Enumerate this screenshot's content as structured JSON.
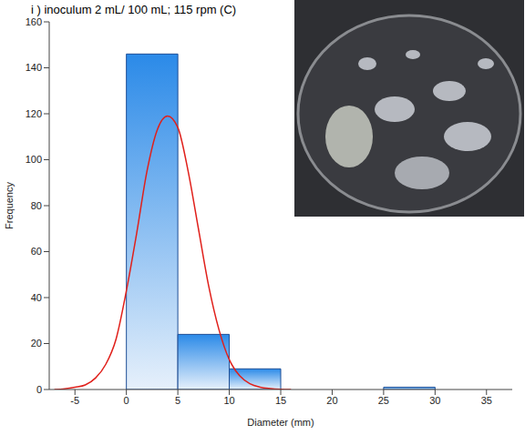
{
  "chart_data": {
    "type": "histogram",
    "title": "i ) inoculum 2 mL/ 100 mL; 115 rpm (C)",
    "x_label": "Diameter (mm)",
    "y_label": "Frequency",
    "bins": [
      0,
      5,
      10,
      15,
      20,
      25,
      30
    ],
    "values": [
      146,
      24,
      9,
      0,
      0,
      1
    ],
    "color": "#2b8ae8",
    "xlim": [
      -7.5,
      37.5
    ],
    "xticks": [
      -5,
      0,
      5,
      10,
      15,
      20,
      25,
      30,
      35
    ],
    "ylim": [
      0,
      160
    ],
    "yticks": [
      0,
      20,
      40,
      60,
      80,
      100,
      120,
      140,
      160
    ],
    "grid": false,
    "curve": {
      "type": "line",
      "color": "#e0201b",
      "x": [
        -7,
        -6,
        -5,
        -4,
        -3,
        -2,
        -1,
        0,
        1,
        2,
        3,
        4,
        5,
        6,
        7,
        8,
        9,
        10,
        11,
        12,
        13,
        14,
        15,
        16
      ],
      "values": [
        0,
        0.3,
        1,
        2,
        5,
        11,
        22,
        43,
        68,
        95,
        113,
        119,
        114,
        95,
        70,
        45,
        26,
        13,
        6,
        2.5,
        1,
        0.4,
        0.1,
        0
      ]
    }
  }
}
